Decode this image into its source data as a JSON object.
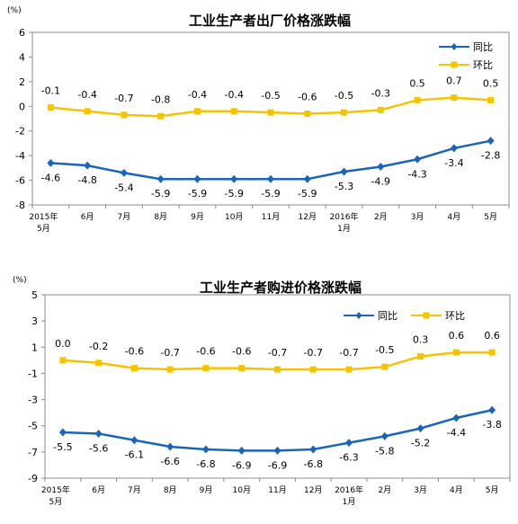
{
  "chart_data": [
    {
      "type": "line",
      "title": "工业生产者出厂价格涨跌幅",
      "ylabel": "(%)",
      "ylim": [
        -8,
        6
      ],
      "yticks": [
        6,
        4,
        2,
        0,
        -2,
        -4,
        -6,
        -8
      ],
      "grid": false,
      "legend_position": "top-right",
      "categories": [
        [
          "2015年",
          "5月"
        ],
        [
          "6月"
        ],
        [
          "7月"
        ],
        [
          "8月"
        ],
        [
          "9月"
        ],
        [
          "10月"
        ],
        [
          "11月"
        ],
        [
          "12月"
        ],
        [
          "2016年",
          "1月"
        ],
        [
          "2月"
        ],
        [
          "3月"
        ],
        [
          "4月"
        ],
        [
          "5月"
        ]
      ],
      "series": [
        {
          "name": "同比",
          "color": "#1a65b8",
          "marker": "diamond",
          "values": [
            -4.6,
            -4.8,
            -5.4,
            -5.9,
            -5.9,
            -5.9,
            -5.9,
            -5.9,
            -5.3,
            -4.9,
            -4.3,
            -3.4,
            -2.8
          ],
          "labels": [
            "-4.6",
            "-4.8",
            "-5.4",
            "-5.9",
            "-5.9",
            "-5.9",
            "-5.9",
            "-5.9",
            "-5.3",
            "-4.9",
            "-4.3",
            "-3.4",
            "-2.8"
          ]
        },
        {
          "name": "环比",
          "color": "#f5c400",
          "marker": "square",
          "values": [
            -0.1,
            -0.4,
            -0.7,
            -0.8,
            -0.4,
            -0.4,
            -0.5,
            -0.6,
            -0.5,
            -0.3,
            0.5,
            0.7,
            0.5
          ],
          "labels": [
            "-0.1",
            "-0.4",
            "-0.7",
            "-0.8",
            "-0.4",
            "-0.4",
            "-0.5",
            "-0.6",
            "-0.5",
            "-0.3",
            "0.5",
            "0.7",
            "0.5"
          ]
        }
      ]
    },
    {
      "type": "line",
      "title": "工业生产者购进价格涨跌幅",
      "ylabel": "(%)",
      "ylim": [
        -9,
        5
      ],
      "yticks": [
        5,
        3,
        1,
        -1,
        -3,
        -5,
        -7,
        -9
      ],
      "grid": false,
      "legend_position": "top-right",
      "categories": [
        [
          "2015年",
          "5月"
        ],
        [
          "6月"
        ],
        [
          "7月"
        ],
        [
          "8月"
        ],
        [
          "9月"
        ],
        [
          "10月"
        ],
        [
          "11月"
        ],
        [
          "12月"
        ],
        [
          "2016年",
          "1月"
        ],
        [
          "2月"
        ],
        [
          "3月"
        ],
        [
          "4月"
        ],
        [
          "5月"
        ]
      ],
      "series": [
        {
          "name": "同比",
          "color": "#1a65b8",
          "marker": "diamond",
          "values": [
            -5.5,
            -5.6,
            -6.1,
            -6.6,
            -6.8,
            -6.9,
            -6.9,
            -6.8,
            -6.3,
            -5.8,
            -5.2,
            -4.4,
            -3.8
          ],
          "labels": [
            "-5.5",
            "-5.6",
            "-6.1",
            "-6.6",
            "-6.8",
            "-6.9",
            "-6.9",
            "-6.8",
            "-6.3",
            "-5.8",
            "-5.2",
            "-4.4",
            "-3.8"
          ]
        },
        {
          "name": "环比",
          "color": "#f5c400",
          "marker": "square",
          "values": [
            0.0,
            -0.2,
            -0.6,
            -0.7,
            -0.6,
            -0.6,
            -0.7,
            -0.7,
            -0.7,
            -0.5,
            0.3,
            0.6,
            0.6
          ],
          "labels": [
            "0.0",
            "-0.2",
            "-0.6",
            "-0.7",
            "-0.6",
            "-0.6",
            "-0.7",
            "-0.7",
            "-0.7",
            "-0.5",
            "0.3",
            "0.6",
            "0.6"
          ]
        }
      ]
    }
  ]
}
